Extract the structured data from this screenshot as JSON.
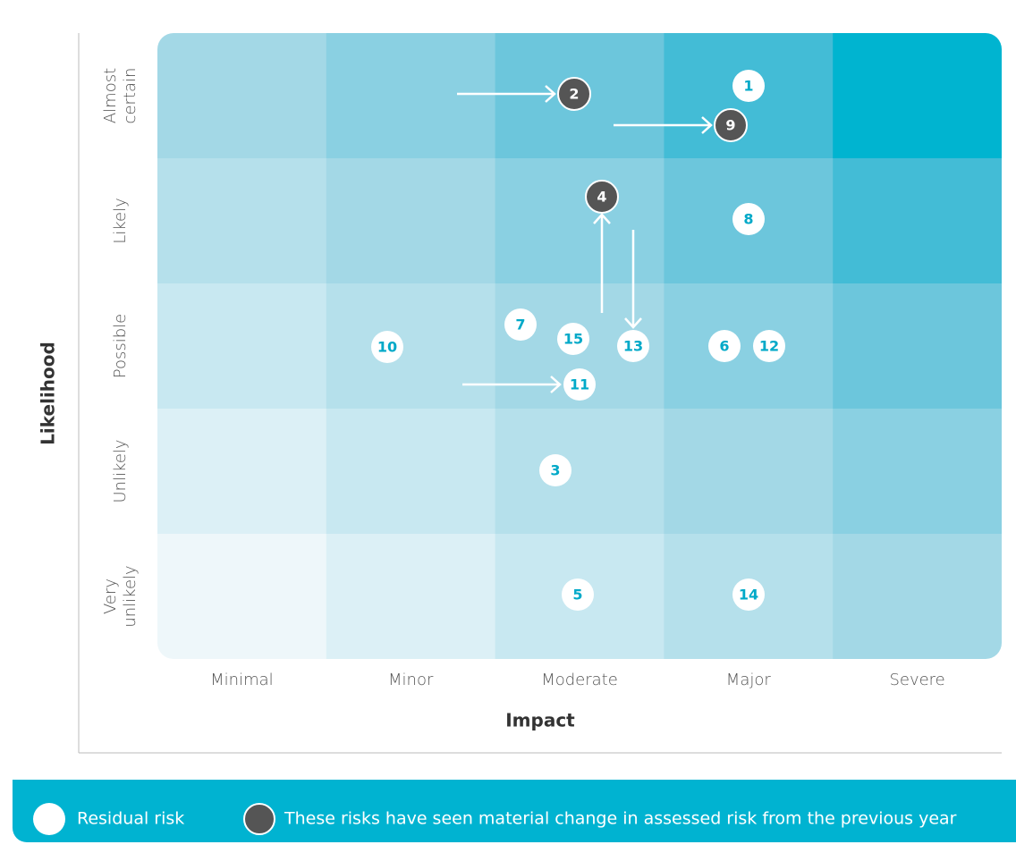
{
  "matrix": {
    "x_title": "Impact",
    "y_title": "Likelihood",
    "columns": [
      "Minimal",
      "Minor",
      "Moderate",
      "Major",
      "Severe"
    ],
    "rows": [
      [
        "Almost",
        "certain"
      ],
      [
        "Likely"
      ],
      [
        "Possible"
      ],
      [
        "Unlikely"
      ],
      [
        "Very",
        "unlikely"
      ]
    ],
    "risks": [
      {
        "label": "1",
        "changed": false
      },
      {
        "label": "2",
        "changed": true
      },
      {
        "label": "9",
        "changed": true
      },
      {
        "label": "4",
        "changed": true
      },
      {
        "label": "8",
        "changed": false
      },
      {
        "label": "13",
        "changed": false
      },
      {
        "label": "7",
        "changed": false
      },
      {
        "label": "15",
        "changed": false
      },
      {
        "label": "10",
        "changed": false
      },
      {
        "label": "6",
        "changed": false
      },
      {
        "label": "12",
        "changed": false
      },
      {
        "label": "11",
        "changed": false
      },
      {
        "label": "3",
        "changed": false
      },
      {
        "label": "5",
        "changed": false
      },
      {
        "label": "14",
        "changed": false
      }
    ]
  },
  "legend": {
    "residual": "Residual risk",
    "changed": "These risks have seen material change in assessed risk from the previous year"
  }
}
